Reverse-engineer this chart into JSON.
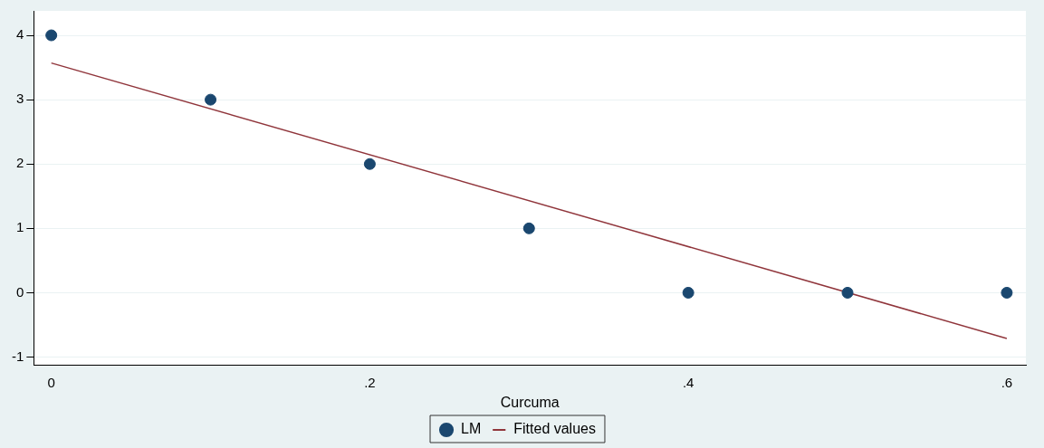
{
  "chart_data": {
    "type": "scatter",
    "xlabel": "Curcuma",
    "x": [
      0,
      0.1,
      0.2,
      0.3,
      0.4,
      0.5,
      0.6
    ],
    "series": [
      {
        "name": "LM",
        "color": "#1a476f",
        "marker": "circle",
        "values": [
          4,
          3,
          2,
          1,
          0,
          0,
          0
        ]
      },
      {
        "name": "Fitted values",
        "type": "line",
        "marker": "none",
        "color": "#90353b",
        "x": [
          0,
          0.6
        ],
        "values": [
          3.57,
          -0.71
        ]
      }
    ],
    "xlim": [
      -0.011,
      0.612
    ],
    "ylim": [
      -1.13,
      4.38
    ],
    "xticks": [
      {
        "value": 0,
        "label": "0"
      },
      {
        "value": 0.2,
        "label": ".2"
      },
      {
        "value": 0.4,
        "label": ".4"
      },
      {
        "value": 0.6,
        "label": ".6"
      }
    ],
    "yticks": [
      -1,
      0,
      1,
      2,
      3,
      4
    ],
    "grid": "y",
    "legend": "bottom"
  }
}
